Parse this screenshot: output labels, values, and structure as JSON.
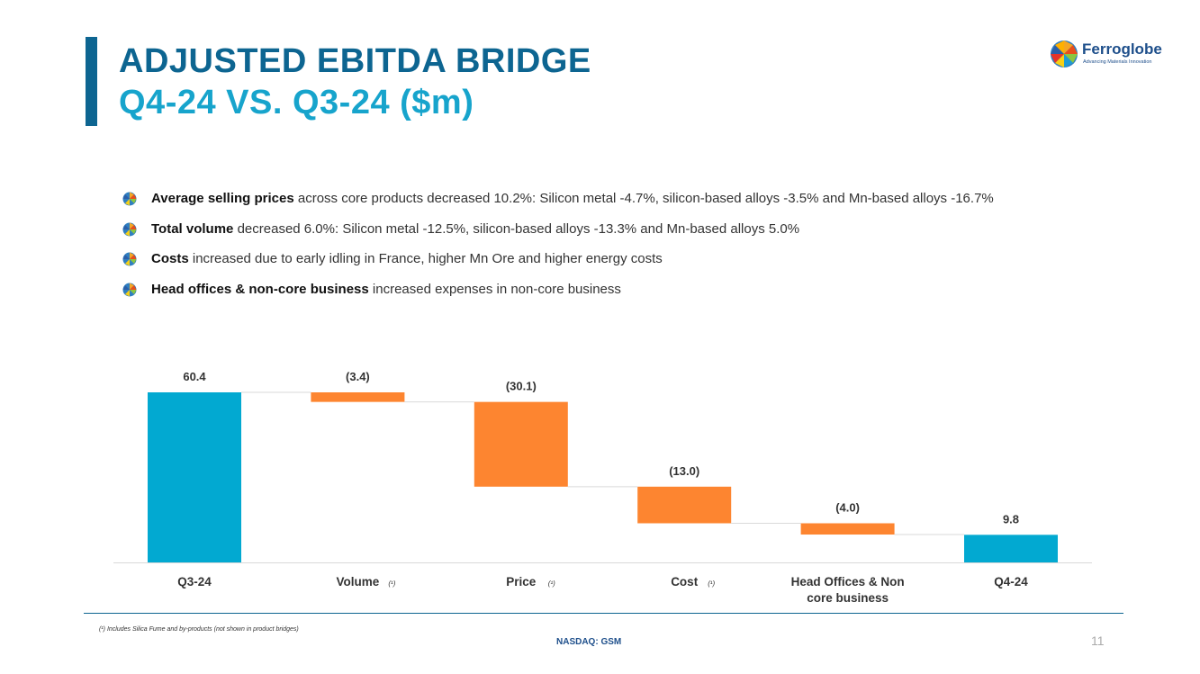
{
  "header": {
    "title_line1": "ADJUSTED EBITDA BRIDGE",
    "title_line2": "Q4-24 VS. Q3-24 ($m)"
  },
  "logo": {
    "name": "Ferroglobe",
    "tagline": "Advancing Materials Innovation",
    "icon": "ferroglobe-globe-icon"
  },
  "bullets": [
    {
      "bold": "Average selling prices",
      "text": " across core products decreased 10.2%: Silicon metal -4.7%, silicon-based alloys -3.5% and Mn-based alloys -16.7%"
    },
    {
      "bold": "Total volume",
      "text": " decreased 6.0%: Silicon metal -12.5%, silicon-based alloys -13.3% and Mn-based alloys 5.0%"
    },
    {
      "bold": "Costs",
      "text": " increased due to early idling in France, higher Mn Ore and higher energy costs"
    },
    {
      "bold": "Head offices & non-core business",
      "text": " increased expenses in non-core business"
    }
  ],
  "chart_data": {
    "type": "waterfall",
    "title": "",
    "categories": [
      {
        "label": "Q3-24",
        "label_line2": "",
        "note": ""
      },
      {
        "label": "Volume",
        "label_line2": "",
        "note": "(¹)"
      },
      {
        "label": "Price",
        "label_line2": "",
        "note": "(¹)"
      },
      {
        "label": "Cost",
        "label_line2": "",
        "note": "(¹)"
      },
      {
        "label": "Head Offices & Non",
        "label_line2": "core business",
        "note": ""
      },
      {
        "label": "Q4-24",
        "label_line2": "",
        "note": ""
      }
    ],
    "values": [
      60.4,
      -3.4,
      -30.1,
      -13.0,
      -4.0,
      9.8
    ],
    "value_labels": [
      "60.4",
      "(3.4)",
      "(30.1)",
      "(13.0)",
      "(4.0)",
      "9.8"
    ],
    "kinds": [
      "total",
      "delta",
      "delta",
      "delta",
      "delta",
      "total"
    ],
    "ylim": [
      0,
      60.4
    ],
    "colors": {
      "total": "#02a9d1",
      "decrease": "#fd8530",
      "axis": "#d9d9d9",
      "connector": "#d9d9d9"
    }
  },
  "footer": {
    "footnote": "(¹) Includes Silica Fume and by-products (not shown in product bridges)",
    "ticker": "NASDAQ: GSM",
    "page_number": "11"
  }
}
